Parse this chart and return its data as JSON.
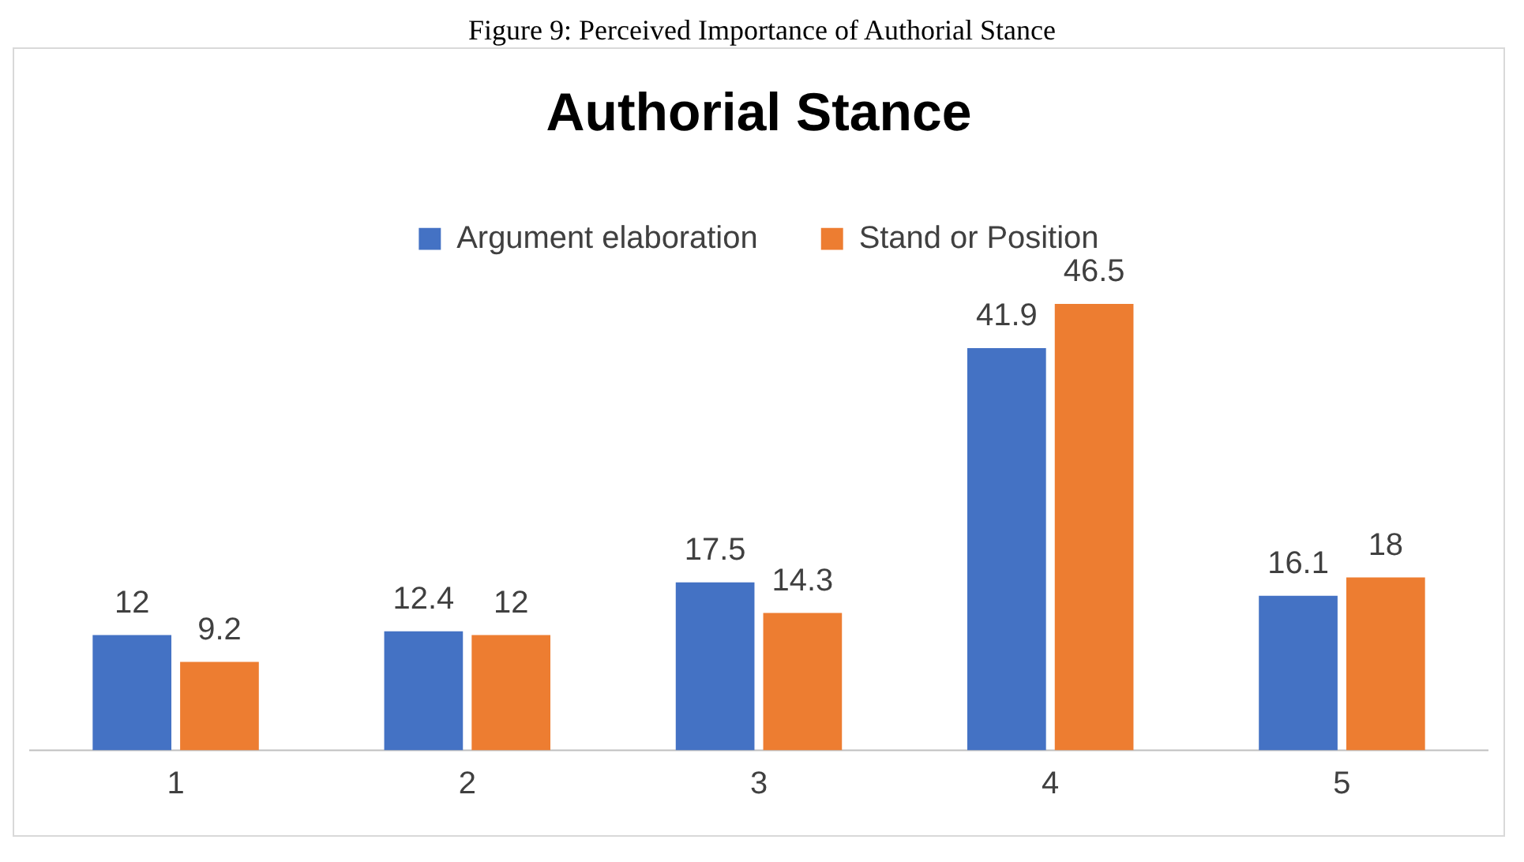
{
  "chart_data": {
    "type": "bar",
    "title": "Authorial Stance",
    "annotations": [
      "Figure 9: Perceived Importance of Authorial Stance"
    ],
    "categories": [
      "1",
      "2",
      "3",
      "4",
      "5"
    ],
    "series": [
      {
        "name": "Argument elaboration",
        "color": "#4472c4",
        "values": [
          12,
          12.4,
          17.5,
          41.9,
          16.1
        ]
      },
      {
        "name": "Stand or Position",
        "color": "#ed7d31",
        "values": [
          9.2,
          12,
          14.3,
          46.5,
          18
        ]
      }
    ],
    "data_labels": true,
    "grid": false,
    "legend": "top"
  }
}
